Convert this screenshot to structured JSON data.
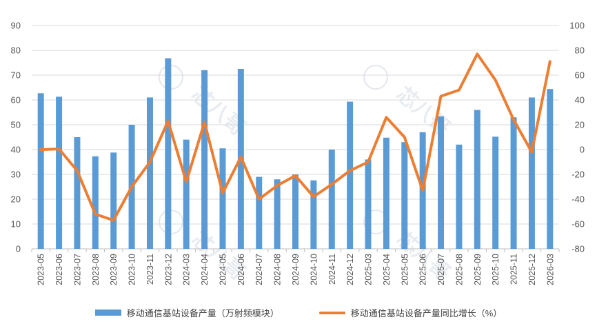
{
  "chart_data": {
    "type": "bar",
    "categories": [
      "2023-05",
      "2023-06",
      "2023-07",
      "2023-08",
      "2023-09",
      "2023-10",
      "2023-11",
      "2023-12",
      "2024-03",
      "2024-04",
      "2024-05",
      "2024-06",
      "2024-07",
      "2024-08",
      "2024-09",
      "2024-10",
      "2024-11",
      "2024-12",
      "2025-03",
      "2025-04",
      "2025-05",
      "2025-06",
      "2025-07",
      "2025-08",
      "2025-09",
      "2025-10",
      "2025-11",
      "2025-12",
      "2026-03"
    ],
    "series": [
      {
        "name": "移动通信基站设备产量（万射频模块）",
        "type": "bar",
        "axis": "left",
        "values": [
          62.7,
          61.3,
          45.0,
          37.3,
          38.8,
          50.0,
          61.0,
          76.8,
          44.0,
          72.0,
          40.5,
          72.5,
          29.0,
          28.0,
          30.0,
          27.6,
          40.0,
          59.3,
          36.0,
          44.8,
          43.0,
          47.0,
          53.4,
          42.0,
          56.0,
          45.2,
          53.0,
          61.0,
          64.4
        ]
      },
      {
        "name": "移动通信基站设备产量同比增长（%）",
        "type": "line",
        "axis": "right",
        "values": [
          0,
          0.5,
          -17,
          -52,
          -57,
          -30,
          -10,
          23,
          -26,
          22,
          -35,
          -6,
          -40,
          -29,
          -21,
          -38,
          -28,
          -17,
          -10,
          26,
          10,
          -33,
          43,
          48,
          77,
          56,
          24,
          -2,
          71
        ]
      }
    ],
    "yaxis_left": {
      "ticks": [
        0,
        10,
        20,
        30,
        40,
        50,
        60,
        70,
        80,
        90
      ],
      "range": [
        0,
        90
      ]
    },
    "yaxis_right": {
      "ticks": [
        -80,
        -60,
        -40,
        -20,
        0,
        20,
        40,
        60,
        80,
        100
      ],
      "range": [
        -80,
        100
      ]
    },
    "grid": true,
    "legend": "bottom",
    "colors": {
      "bar": "#5b9bd5",
      "line": "#ed7d31",
      "grid": "#d9d9d9",
      "axis_text": "#555555"
    },
    "watermark_text": "芯八哥"
  },
  "legend": {
    "bar_label": "移动通信基站设备产量（万射频模块）",
    "line_label": "移动通信基站设备产量同比增长（%）"
  }
}
